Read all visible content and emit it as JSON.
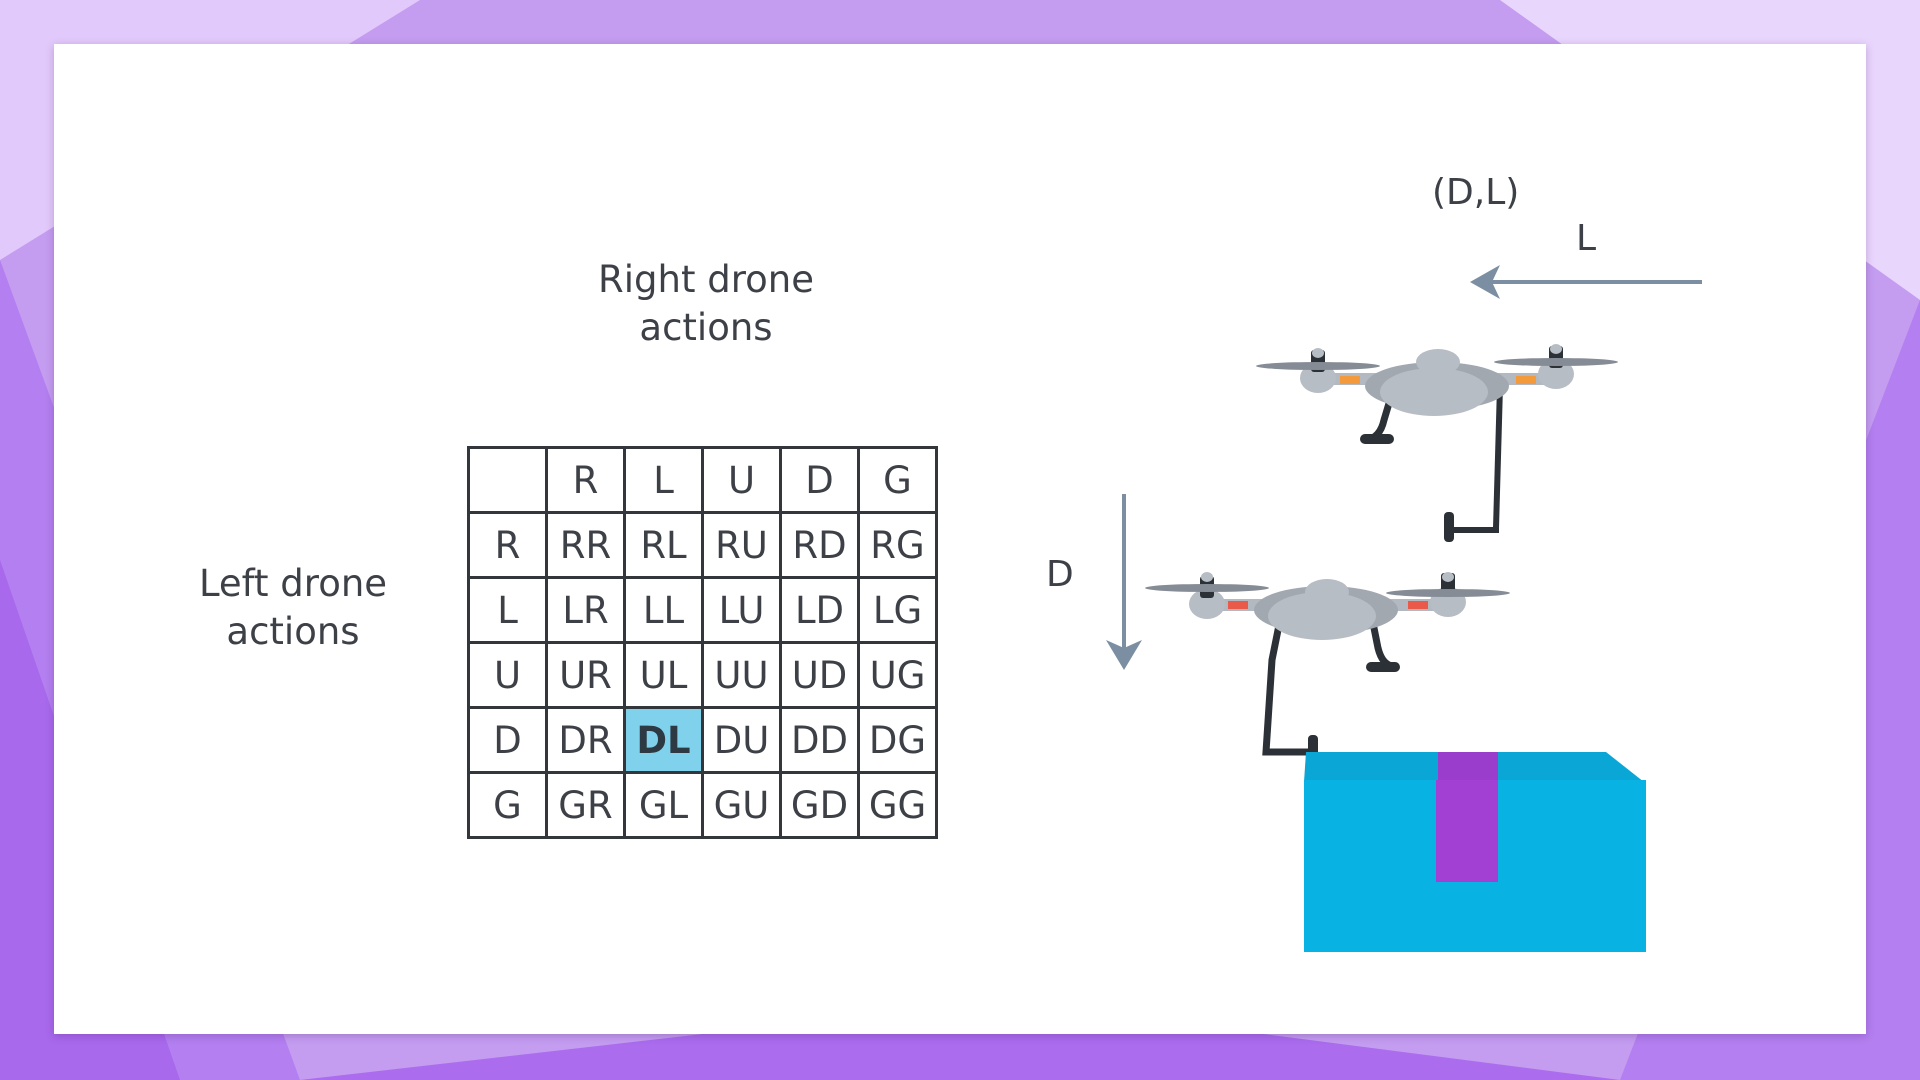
{
  "slide": {
    "column_header": {
      "line1": "Right drone",
      "line2": "actions"
    },
    "row_header": {
      "line1": "Left drone",
      "line2": "actions"
    }
  },
  "action_table": {
    "column_labels": [
      "R",
      "L",
      "U",
      "D",
      "G"
    ],
    "rows": [
      {
        "label": "R",
        "cells": [
          "RR",
          "RL",
          "RU",
          "RD",
          "RG"
        ]
      },
      {
        "label": "L",
        "cells": [
          "LR",
          "LL",
          "LU",
          "LD",
          "LG"
        ]
      },
      {
        "label": "U",
        "cells": [
          "UR",
          "UL",
          "UU",
          "UD",
          "UG"
        ]
      },
      {
        "label": "D",
        "cells": [
          "DR",
          "DL",
          "DU",
          "DD",
          "DG"
        ]
      },
      {
        "label": "G",
        "cells": [
          "GR",
          "GL",
          "GU",
          "GD",
          "GG"
        ]
      }
    ],
    "highlighted": "DL",
    "highlight_color": "#80d1eb"
  },
  "illustration": {
    "joint_action": "(D,L)",
    "upper_drone_move": "L",
    "lower_drone_move": "D",
    "arrow_color": "#7c8ea2",
    "package_color": "#08b2e3",
    "tape_color": "#a340d4"
  },
  "theme": {
    "background": "#c79cf0",
    "accent": "#b06ff0",
    "slide_background": "#ffffff",
    "text_color": "#3d4147"
  }
}
